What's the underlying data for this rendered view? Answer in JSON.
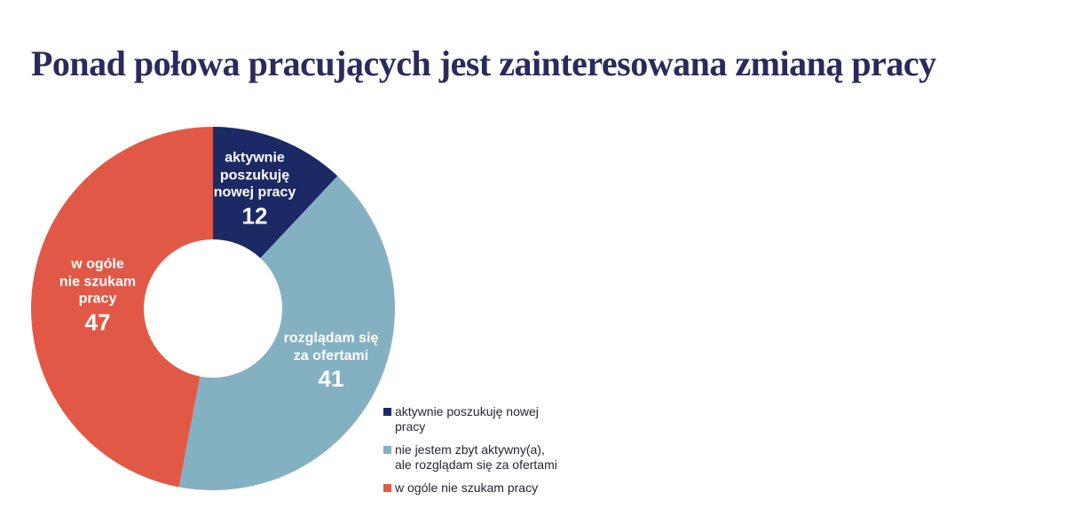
{
  "page": {
    "title": "Ponad połowa pracujących jest zainteresowana zmianą pracy",
    "title_color": "#2b2a5d",
    "background": "#ffffff"
  },
  "chart_data": {
    "type": "pie",
    "subtype": "donut",
    "title": "Ponad połowa pracujących jest zainteresowana zmianą pracy",
    "unit": "percent",
    "total": 100,
    "start_angle_deg": 0,
    "direction": "clockwise",
    "inner_radius_ratio": 0.38,
    "grid": false,
    "legend_position": "bottom-right",
    "segments": [
      {
        "name": "aktywnie poszukuję nowej pracy",
        "value": 12,
        "color": "#1b2a64",
        "label_lines": [
          "aktywnie",
          "poszukuję",
          "nowej pracy"
        ]
      },
      {
        "name": "nie jestem zbyt aktywny(a), ale rozglądam się za ofertami",
        "value": 41,
        "color": "#84b1c2",
        "label_lines": [
          "rozglądam się",
          "za ofertami"
        ]
      },
      {
        "name": "w ogóle nie szukam pracy",
        "value": 47,
        "color": "#e15946",
        "label_lines": [
          "w ogóle",
          "nie szukam",
          "pracy"
        ]
      }
    ]
  },
  "legend": {
    "items": [
      {
        "text": "aktywnie poszukuję nowej\npracy",
        "color": "#1b2a64"
      },
      {
        "text": "nie jestem zbyt aktywny(a),\nale rozglądam się za ofertami",
        "color": "#84b1c2"
      },
      {
        "text": "w ogóle nie szukam pracy",
        "color": "#e15946"
      }
    ]
  }
}
